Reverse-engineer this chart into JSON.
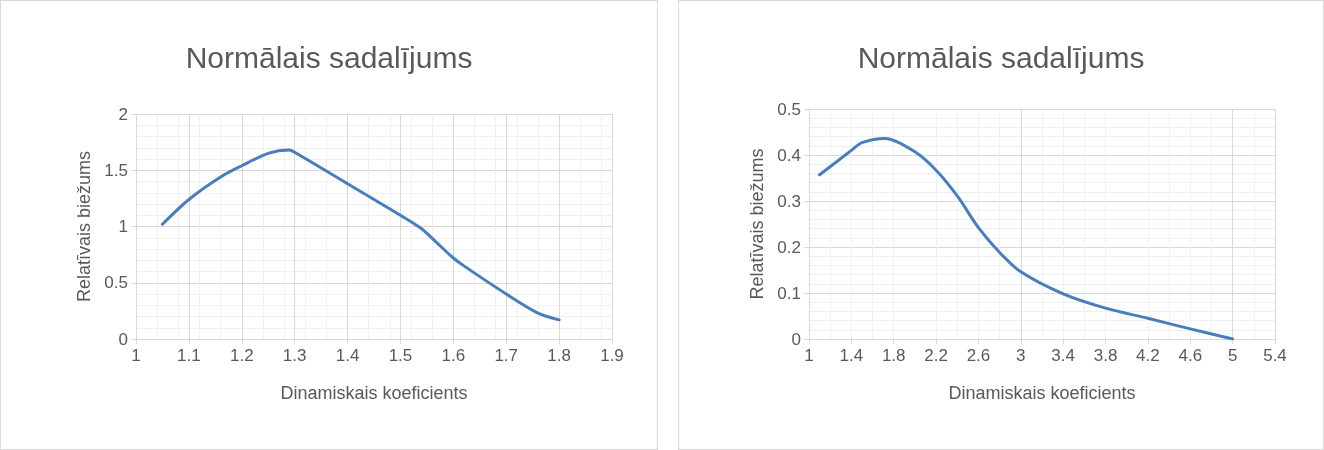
{
  "chart_data": [
    {
      "type": "line",
      "title": "Normālais sadalījums",
      "xlabel": "Dinamiskais koeficients",
      "ylabel": "Relatīvais biežums",
      "grid": true,
      "marker": "none",
      "line_style": "solid",
      "xlim": [
        1,
        1.9
      ],
      "xticks": [
        1,
        1.1,
        1.2,
        1.3,
        1.4,
        1.5,
        1.6,
        1.7,
        1.8,
        1.9
      ],
      "ylim": [
        0,
        2
      ],
      "yticks": [
        0,
        0.5,
        1,
        1.5,
        2
      ],
      "series": [
        {
          "color": "#4a7ebb",
          "x": [
            1.05,
            1.1,
            1.16,
            1.2,
            1.25,
            1.29,
            1.3,
            1.4,
            1.5,
            1.54,
            1.57,
            1.6,
            1.62,
            1.7,
            1.76,
            1.8
          ],
          "values": [
            1.02,
            1.24,
            1.44,
            1.54,
            1.65,
            1.68,
            1.66,
            1.38,
            1.1,
            0.98,
            0.85,
            0.72,
            0.65,
            0.4,
            0.23,
            0.17
          ]
        }
      ]
    },
    {
      "type": "line",
      "title": "Normālais sadalījums",
      "xlabel": "Dinamiskais koeficients",
      "ylabel": "Relatīvais biežums",
      "grid": true,
      "marker": "none",
      "line_style": "solid",
      "xlim": [
        1,
        5.4
      ],
      "xticks": [
        1,
        1.4,
        1.8,
        2.2,
        2.6,
        3,
        3.4,
        3.8,
        4.2,
        4.6,
        5,
        5.4
      ],
      "ylim": [
        0,
        0.5
      ],
      "yticks": [
        0,
        0.1,
        0.2,
        0.3,
        0.4,
        0.5
      ],
      "series": [
        {
          "color": "#4a7ebb",
          "x": [
            1.1,
            1.4,
            1.5,
            1.72,
            2,
            2.2,
            2.4,
            2.6,
            2.8,
            3,
            3.4,
            3.8,
            4.2,
            4.6,
            5
          ],
          "values": [
            0.357,
            0.41,
            0.427,
            0.436,
            0.407,
            0.367,
            0.311,
            0.242,
            0.188,
            0.146,
            0.098,
            0.067,
            0.045,
            0.022,
            0
          ]
        }
      ]
    }
  ]
}
